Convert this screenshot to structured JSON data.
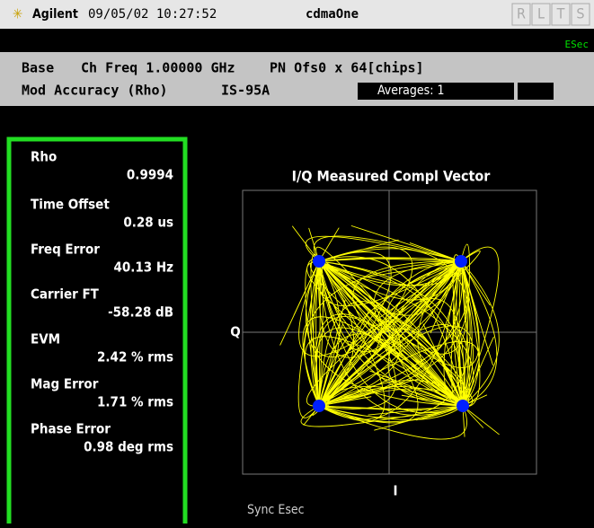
{
  "header": {
    "brand": "Agilent",
    "datetime": "09/05/02 10:27:52",
    "mode": "cdmaOne",
    "indicators": [
      "R",
      "L",
      "T",
      "S"
    ],
    "status": "ESec"
  },
  "info": {
    "line1": [
      "Base",
      "Ch Freq 1.00000 GHz",
      "PN Ofs0 x 64[chips]"
    ],
    "line2": [
      "Mod Accuracy (Rho)",
      "IS-95A"
    ],
    "averages": "Averages: 1"
  },
  "metrics": [
    {
      "label": "Rho",
      "value": "0.9994"
    },
    {
      "label": "Time Offset",
      "value": "0.28 us"
    },
    {
      "label": "Freq Error",
      "value": "40.13 Hz"
    },
    {
      "label": "Carrier FT",
      "value": "-58.28 dB"
    },
    {
      "label": "EVM",
      "value": "2.42 % rms"
    },
    {
      "label": "Mag Error",
      "value": "1.71 % rms"
    },
    {
      "label": "Phase Error",
      "value": "0.98 deg rms"
    }
  ],
  "plot": {
    "title": "I/Q Measured Compl Vector",
    "y_label": "Q",
    "x_label": "I",
    "footer": "Sync Esec"
  }
}
